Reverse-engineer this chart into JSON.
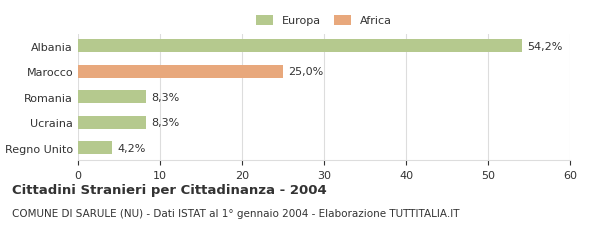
{
  "categories": [
    "Albania",
    "Marocco",
    "Romania",
    "Ucraina",
    "Regno Unito"
  ],
  "values": [
    54.2,
    25.0,
    8.3,
    8.3,
    4.2
  ],
  "labels": [
    "54,2%",
    "25,0%",
    "8,3%",
    "8,3%",
    "4,2%"
  ],
  "colors": [
    "#b5c98e",
    "#e8a87c",
    "#b5c98e",
    "#b5c98e",
    "#b5c98e"
  ],
  "legend_items": [
    {
      "label": "Europa",
      "color": "#b5c98e"
    },
    {
      "label": "Africa",
      "color": "#e8a87c"
    }
  ],
  "xlim": [
    0,
    60
  ],
  "xticks": [
    0,
    10,
    20,
    30,
    40,
    50,
    60
  ],
  "title": "Cittadini Stranieri per Cittadinanza - 2004",
  "subtitle": "COMUNE DI SARULE (NU) - Dati ISTAT al 1° gennaio 2004 - Elaborazione TUTTITALIA.IT",
  "title_fontsize": 9.5,
  "subtitle_fontsize": 7.5,
  "label_fontsize": 8,
  "tick_fontsize": 8,
  "bar_height": 0.52,
  "background_color": "#ffffff",
  "grid_color": "#dddddd",
  "text_color": "#333333"
}
